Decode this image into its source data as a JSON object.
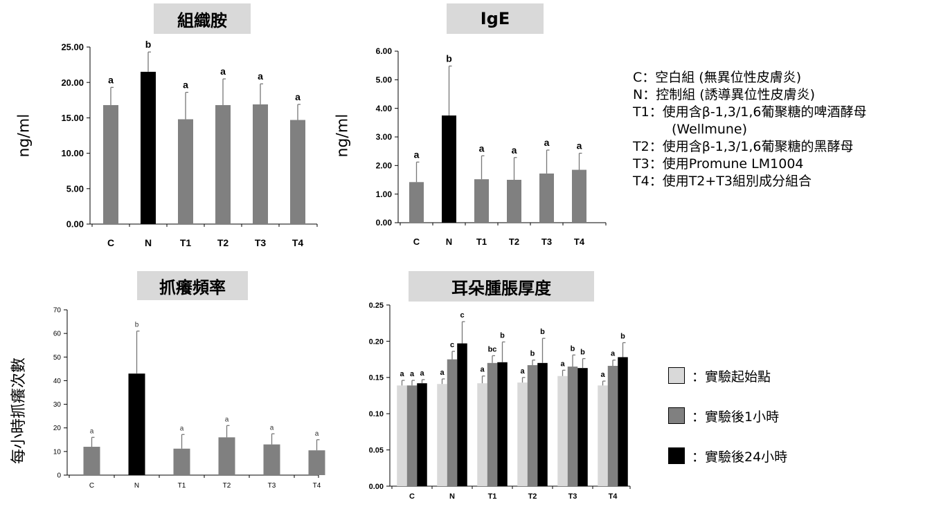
{
  "legend_definitions": [
    "C：空白組 (無異位性皮膚炎)",
    "N：控制組 (誘導異位性皮膚炎)",
    "T1：使用含β-1,3/1,6葡聚糖的啤酒酵母",
    "(Wellmune)",
    "T2：使用含β-1,3/1,6葡聚糖的黑酵母",
    "T3：使用Promune LM1004",
    "T4：使用T2+T3組別成分組合"
  ],
  "series_legend": [
    {
      "label": "：實驗起始點",
      "color": "#d9d9d9"
    },
    {
      "label": "：實驗後1小時",
      "color": "#808080"
    },
    {
      "label": "：實驗後24小時",
      "color": "#000000"
    }
  ],
  "chart_data": [
    {
      "type": "bar",
      "title": "組織胺",
      "ylabel": "ng/ml",
      "categories": [
        "C",
        "N",
        "T1",
        "T2",
        "T3",
        "T4"
      ],
      "values": [
        16.8,
        21.5,
        14.8,
        16.8,
        16.9,
        14.7
      ],
      "errors": [
        2.5,
        2.8,
        3.8,
        3.7,
        2.9,
        2.2
      ],
      "letters": [
        "a",
        "b",
        "a",
        "a",
        "a",
        "a"
      ],
      "colors": [
        "#808080",
        "#000000",
        "#808080",
        "#808080",
        "#808080",
        "#808080"
      ],
      "ylim": [
        0,
        25
      ],
      "yticks": [
        "0.00",
        "5.00",
        "10.00",
        "15.00",
        "20.00",
        "25.00"
      ]
    },
    {
      "type": "bar",
      "title": "IgE",
      "ylabel": "ng/ml",
      "categories": [
        "C",
        "N",
        "T1",
        "T2",
        "T3",
        "T4"
      ],
      "values": [
        1.42,
        3.75,
        1.52,
        1.5,
        1.72,
        1.85
      ],
      "errors": [
        0.7,
        1.73,
        0.82,
        0.78,
        0.82,
        0.58
      ],
      "letters": [
        "a",
        "b",
        "a",
        "a",
        "a",
        "a"
      ],
      "colors": [
        "#808080",
        "#000000",
        "#808080",
        "#808080",
        "#808080",
        "#808080"
      ],
      "ylim": [
        0,
        6
      ],
      "yticks": [
        "0.00",
        "1.00",
        "2.00",
        "3.00",
        "4.00",
        "5.00",
        "6.00"
      ]
    },
    {
      "type": "bar",
      "title": "抓癢頻率",
      "ylabel": "每小時抓癢次數",
      "categories": [
        "C",
        "N",
        "T1",
        "T2",
        "T3",
        "T4"
      ],
      "values": [
        12,
        43,
        11.2,
        16,
        13,
        10.5
      ],
      "errors": [
        4,
        18,
        6,
        5,
        4.5,
        4.5
      ],
      "letters": [
        "a",
        "b",
        "a",
        "a",
        "a",
        "a"
      ],
      "colors": [
        "#808080",
        "#000000",
        "#808080",
        "#808080",
        "#808080",
        "#808080"
      ],
      "ylim": [
        0,
        70
      ],
      "yticks": [
        "0",
        "10",
        "20",
        "30",
        "40",
        "50",
        "60",
        "70"
      ]
    },
    {
      "type": "bar",
      "title": "耳朵腫脹厚度",
      "ylabel": "",
      "categories": [
        "C",
        "N",
        "T1",
        "T2",
        "T3",
        "T4"
      ],
      "series": [
        {
          "values": [
            0.139,
            0.141,
            0.142,
            0.143,
            0.152,
            0.139
          ],
          "errors": [
            0.007,
            0.007,
            0.01,
            0.007,
            0.008,
            0.006
          ],
          "letters": [
            "a",
            "a",
            "a",
            "a",
            "a",
            "a"
          ],
          "color": "#d9d9d9"
        },
        {
          "values": [
            0.139,
            0.175,
            0.17,
            0.167,
            0.165,
            0.166
          ],
          "errors": [
            0.007,
            0.011,
            0.01,
            0.007,
            0.016,
            0.008
          ],
          "letters": [
            "a",
            "c",
            "bc",
            "b",
            "b",
            "a"
          ],
          "color": "#808080"
        },
        {
          "values": [
            0.142,
            0.197,
            0.171,
            0.17,
            0.163,
            0.178
          ],
          "errors": [
            0.005,
            0.03,
            0.028,
            0.034,
            0.013,
            0.02
          ],
          "letters": [
            "a",
            "c",
            "b",
            "b",
            "b",
            "b"
          ],
          "color": "#000000"
        }
      ],
      "ylim": [
        0,
        0.25
      ],
      "yticks": [
        "0.00",
        "0.05",
        "0.10",
        "0.15",
        "0.20",
        "0.25"
      ]
    }
  ]
}
